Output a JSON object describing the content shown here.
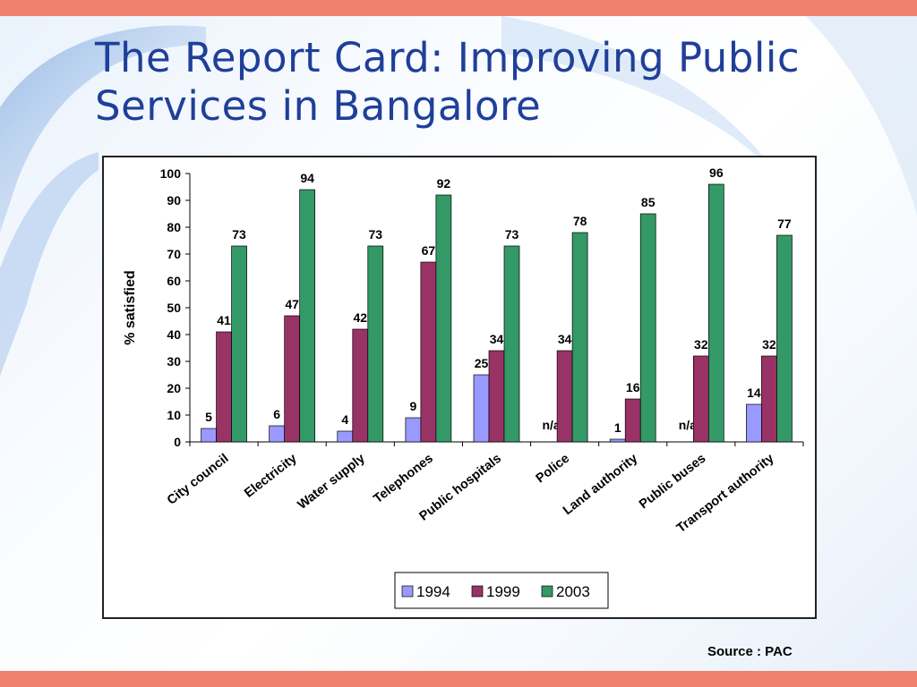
{
  "slide": {
    "title_line1": "The Report Card:  Improving Public",
    "title_line2": "Services in Bangalore",
    "source": "Source : PAC"
  },
  "colors": {
    "accent_bar": "#f08070",
    "title": "#1f3f99"
  },
  "chart_data": {
    "type": "bar",
    "title": "",
    "ylabel": "% satisfied",
    "xlabel": "",
    "ylim": [
      0,
      100
    ],
    "yticks": [
      0,
      10,
      20,
      30,
      40,
      50,
      60,
      70,
      80,
      90,
      100
    ],
    "grid": false,
    "legend_position": "bottom",
    "categories": [
      "City council",
      "Electricity",
      "Water supply",
      "Telephones",
      "Public hospitals",
      "Police",
      "Land authority",
      "Public buses",
      "Transport authority"
    ],
    "series": [
      {
        "name": "1994",
        "color": "#9999ff",
        "values": [
          5,
          6,
          4,
          9,
          25,
          null,
          1,
          null,
          14
        ],
        "labels": [
          "5",
          "6",
          "4",
          "9",
          "25",
          "n/a",
          "1",
          "n/a",
          "14"
        ]
      },
      {
        "name": "1999",
        "color": "#993366",
        "values": [
          41,
          47,
          42,
          67,
          34,
          34,
          16,
          32,
          32
        ],
        "labels": [
          "41",
          "47",
          "42",
          "67",
          "34",
          "34",
          "16",
          "32",
          "32"
        ]
      },
      {
        "name": "2003",
        "color": "#339966",
        "values": [
          73,
          94,
          73,
          92,
          73,
          78,
          85,
          96,
          77
        ],
        "labels": [
          "73",
          "94",
          "73",
          "92",
          "73",
          "78",
          "85",
          "96",
          "77"
        ]
      }
    ]
  }
}
